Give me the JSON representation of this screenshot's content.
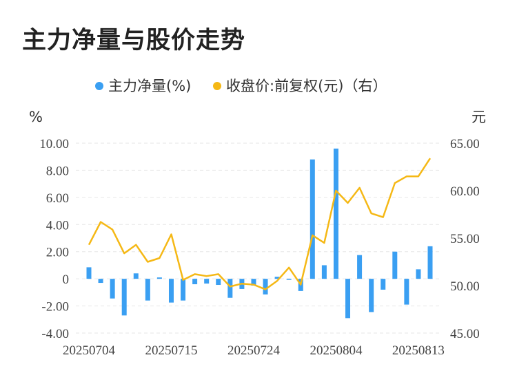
{
  "title": "主力净量与股价走势",
  "colors": {
    "bar": "#3a9ff2",
    "line": "#f5b815",
    "grid": "#e6e6e6"
  },
  "chart_data": {
    "type": "bar+line",
    "legend": {
      "placement": "top-center",
      "entries": [
        "主力净量(%)",
        "收盘价:前复权(元)（右）"
      ]
    },
    "left_axis": {
      "unit": "%",
      "range": [
        -4,
        10
      ],
      "ticks": [
        "10.00",
        "8.00",
        "6.00",
        "4.00",
        "2.00",
        "0",
        "-2.00",
        "-4.00"
      ]
    },
    "right_axis": {
      "unit": "元",
      "range": [
        45,
        65
      ],
      "ticks": [
        "65.00",
        "60.00",
        "55.00",
        "50.00",
        "45.00"
      ]
    },
    "x_tick_labels": [
      "20250704",
      "20250715",
      "20250724",
      "20250804",
      "20250813"
    ],
    "x_tick_index": [
      0,
      7,
      14,
      21,
      28
    ],
    "grid": "horizontal-dashed",
    "series": [
      {
        "name": "主力净量(%)",
        "type": "bar",
        "axis": "left",
        "values": [
          0.85,
          -0.3,
          -1.45,
          -2.7,
          0.4,
          -1.6,
          0.1,
          -1.75,
          -1.6,
          -0.4,
          -0.35,
          -0.45,
          -1.4,
          -0.75,
          -0.5,
          -1.15,
          0.15,
          0.0,
          -0.9,
          8.8,
          1.0,
          9.6,
          -2.9,
          1.75,
          -2.45,
          -0.8,
          2.0,
          -1.9,
          0.7,
          2.4
        ]
      },
      {
        "name": "收盘价:前复权(元)（右）",
        "type": "line",
        "axis": "right",
        "values": [
          54.3,
          56.7,
          55.9,
          53.4,
          54.3,
          52.5,
          52.9,
          55.4,
          50.6,
          51.2,
          51.0,
          51.2,
          49.9,
          50.2,
          50.1,
          49.6,
          50.5,
          51.9,
          50.1,
          55.3,
          54.5,
          60.0,
          58.7,
          60.3,
          57.6,
          57.2,
          60.8,
          61.5,
          61.5,
          63.4
        ]
      }
    ]
  }
}
